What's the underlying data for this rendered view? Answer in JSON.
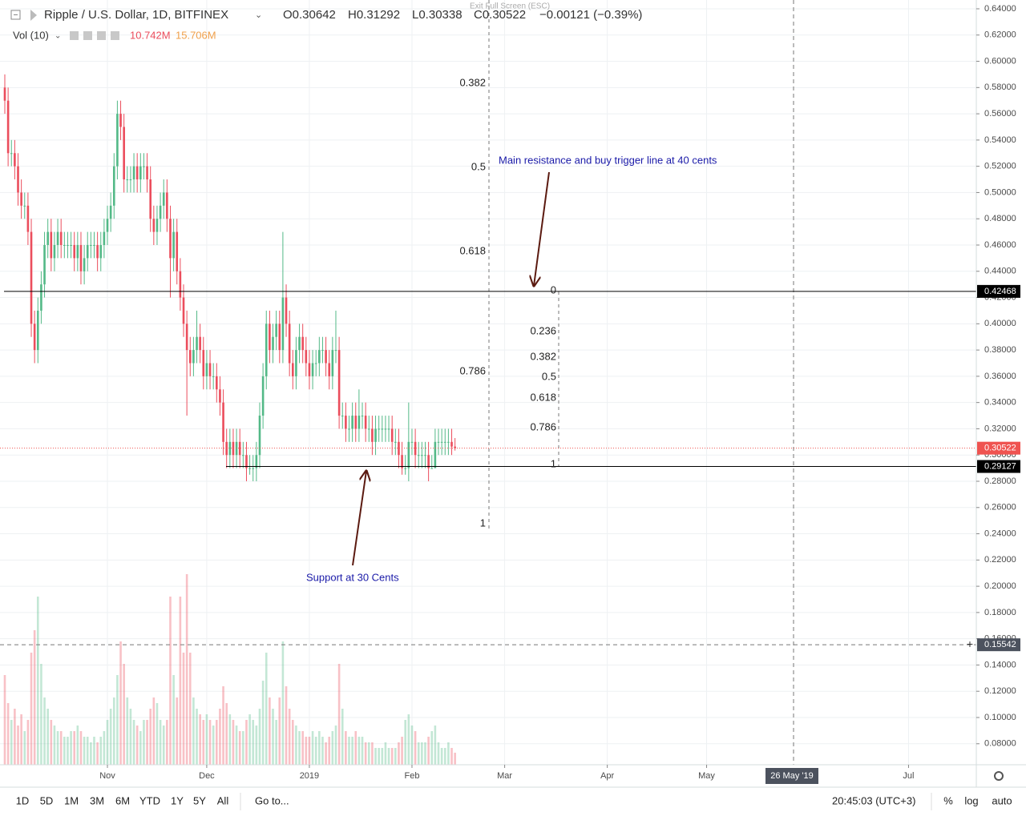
{
  "chart_data": {
    "type": "candlestick",
    "title": "Ripple / U.S. Dollar, 1D, BITFINEX",
    "header_values": [
      "O0.30642",
      "H0.31292",
      "L0.30338",
      "C0.30522",
      "−0.00121 (−0.39%)"
    ],
    "volume_label": "Vol (10)",
    "volume_values": [
      "10.742M",
      "15.706M"
    ],
    "open": [
      0.58,
      0.57,
      0.53,
      0.53,
      0.52,
      0.5,
      0.49,
      0.49,
      0.47,
      0.4,
      0.38,
      0.41,
      0.43,
      0.46,
      0.47,
      0.45,
      0.46,
      0.47,
      0.46,
      0.46,
      0.46,
      0.46,
      0.45,
      0.46,
      0.44,
      0.45,
      0.46,
      0.46,
      0.46,
      0.45,
      0.46,
      0.47,
      0.48,
      0.49,
      0.52,
      0.56,
      0.55,
      0.51,
      0.51,
      0.51,
      0.52,
      0.51,
      0.52,
      0.52,
      0.51,
      0.48,
      0.47,
      0.48,
      0.49,
      0.5,
      0.48,
      0.45,
      0.47,
      0.44,
      0.42,
      0.4,
      0.38,
      0.37,
      0.38,
      0.39,
      0.38,
      0.36,
      0.37,
      0.36,
      0.36,
      0.35,
      0.34,
      0.31,
      0.3,
      0.31,
      0.3,
      0.31,
      0.3,
      0.3,
      0.29,
      0.29,
      0.29,
      0.3,
      0.33,
      0.36,
      0.4,
      0.38,
      0.39,
      0.4,
      0.38,
      0.42,
      0.4,
      0.37,
      0.36,
      0.38,
      0.39,
      0.38,
      0.37,
      0.36,
      0.37,
      0.37,
      0.38,
      0.38,
      0.37,
      0.36,
      0.38,
      0.38,
      0.33,
      0.33,
      0.32,
      0.32,
      0.33,
      0.32,
      0.33,
      0.33,
      0.32,
      0.32,
      0.31,
      0.32,
      0.32,
      0.32,
      0.32,
      0.32,
      0.31,
      0.31,
      0.3,
      0.29,
      0.29,
      0.31,
      0.31,
      0.3,
      0.3,
      0.3,
      0.3,
      0.29,
      0.29,
      0.31,
      0.31,
      0.31,
      0.31,
      0.31,
      0.30642
    ],
    "high": [
      0.59,
      0.58,
      0.54,
      0.54,
      0.53,
      0.51,
      0.5,
      0.5,
      0.48,
      0.41,
      0.42,
      0.44,
      0.47,
      0.48,
      0.48,
      0.47,
      0.48,
      0.48,
      0.47,
      0.47,
      0.47,
      0.47,
      0.47,
      0.47,
      0.46,
      0.47,
      0.47,
      0.47,
      0.47,
      0.47,
      0.48,
      0.49,
      0.5,
      0.53,
      0.57,
      0.57,
      0.56,
      0.52,
      0.52,
      0.53,
      0.53,
      0.53,
      0.53,
      0.53,
      0.52,
      0.49,
      0.49,
      0.5,
      0.51,
      0.51,
      0.49,
      0.48,
      0.48,
      0.45,
      0.43,
      0.41,
      0.39,
      0.39,
      0.41,
      0.4,
      0.39,
      0.38,
      0.38,
      0.37,
      0.37,
      0.36,
      0.35,
      0.32,
      0.32,
      0.32,
      0.32,
      0.32,
      0.31,
      0.31,
      0.3,
      0.3,
      0.31,
      0.34,
      0.37,
      0.41,
      0.41,
      0.4,
      0.41,
      0.41,
      0.47,
      0.43,
      0.41,
      0.38,
      0.39,
      0.4,
      0.4,
      0.39,
      0.38,
      0.38,
      0.38,
      0.39,
      0.39,
      0.39,
      0.38,
      0.39,
      0.41,
      0.39,
      0.34,
      0.34,
      0.33,
      0.34,
      0.34,
      0.35,
      0.34,
      0.34,
      0.33,
      0.33,
      0.33,
      0.33,
      0.33,
      0.33,
      0.33,
      0.33,
      0.32,
      0.32,
      0.31,
      0.3,
      0.34,
      0.32,
      0.32,
      0.31,
      0.31,
      0.31,
      0.31,
      0.3,
      0.32,
      0.32,
      0.32,
      0.32,
      0.32,
      0.32,
      0.31292
    ],
    "low": [
      0.56,
      0.52,
      0.52,
      0.51,
      0.49,
      0.48,
      0.48,
      0.46,
      0.39,
      0.37,
      0.37,
      0.4,
      0.42,
      0.45,
      0.44,
      0.44,
      0.45,
      0.45,
      0.45,
      0.45,
      0.45,
      0.44,
      0.44,
      0.43,
      0.43,
      0.44,
      0.45,
      0.45,
      0.44,
      0.44,
      0.45,
      0.46,
      0.47,
      0.48,
      0.51,
      0.54,
      0.5,
      0.5,
      0.5,
      0.5,
      0.5,
      0.5,
      0.51,
      0.5,
      0.47,
      0.46,
      0.46,
      0.47,
      0.48,
      0.47,
      0.42,
      0.44,
      0.43,
      0.41,
      0.39,
      0.33,
      0.36,
      0.36,
      0.37,
      0.37,
      0.35,
      0.35,
      0.35,
      0.35,
      0.34,
      0.33,
      0.3,
      0.29,
      0.29,
      0.29,
      0.29,
      0.29,
      0.29,
      0.28,
      0.285,
      0.28,
      0.28,
      0.29,
      0.32,
      0.35,
      0.37,
      0.37,
      0.38,
      0.37,
      0.37,
      0.39,
      0.36,
      0.35,
      0.35,
      0.37,
      0.37,
      0.36,
      0.35,
      0.35,
      0.36,
      0.36,
      0.37,
      0.36,
      0.35,
      0.35,
      0.37,
      0.32,
      0.32,
      0.31,
      0.31,
      0.31,
      0.31,
      0.31,
      0.32,
      0.31,
      0.31,
      0.3,
      0.3,
      0.31,
      0.31,
      0.31,
      0.31,
      0.3,
      0.3,
      0.29,
      0.285,
      0.285,
      0.28,
      0.3,
      0.29,
      0.29,
      0.29,
      0.29,
      0.28,
      0.29,
      0.29,
      0.3,
      0.3,
      0.3,
      0.3,
      0.3,
      0.30338
    ],
    "close": [
      0.57,
      0.53,
      0.53,
      0.52,
      0.5,
      0.49,
      0.49,
      0.47,
      0.4,
      0.38,
      0.41,
      0.43,
      0.46,
      0.47,
      0.45,
      0.46,
      0.47,
      0.46,
      0.46,
      0.46,
      0.46,
      0.45,
      0.46,
      0.44,
      0.45,
      0.46,
      0.46,
      0.46,
      0.45,
      0.46,
      0.47,
      0.48,
      0.49,
      0.52,
      0.56,
      0.55,
      0.51,
      0.51,
      0.51,
      0.52,
      0.51,
      0.52,
      0.52,
      0.51,
      0.48,
      0.47,
      0.48,
      0.49,
      0.5,
      0.48,
      0.45,
      0.47,
      0.44,
      0.42,
      0.4,
      0.38,
      0.37,
      0.38,
      0.39,
      0.38,
      0.36,
      0.37,
      0.36,
      0.36,
      0.35,
      0.34,
      0.31,
      0.3,
      0.31,
      0.3,
      0.31,
      0.3,
      0.3,
      0.29,
      0.29,
      0.29,
      0.3,
      0.33,
      0.36,
      0.4,
      0.38,
      0.39,
      0.4,
      0.38,
      0.42,
      0.4,
      0.37,
      0.36,
      0.38,
      0.39,
      0.38,
      0.37,
      0.36,
      0.37,
      0.37,
      0.38,
      0.38,
      0.37,
      0.36,
      0.38,
      0.38,
      0.33,
      0.33,
      0.32,
      0.32,
      0.33,
      0.32,
      0.33,
      0.33,
      0.32,
      0.32,
      0.31,
      0.32,
      0.32,
      0.32,
      0.32,
      0.32,
      0.31,
      0.31,
      0.3,
      0.29,
      0.29,
      0.31,
      0.31,
      0.3,
      0.3,
      0.3,
      0.3,
      0.29,
      0.29,
      0.31,
      0.31,
      0.31,
      0.31,
      0.31,
      0.30642,
      0.30522
    ],
    "volume": [
      80,
      55,
      40,
      50,
      35,
      45,
      30,
      40,
      100,
      120,
      150,
      90,
      60,
      50,
      40,
      35,
      30,
      30,
      25,
      25,
      30,
      30,
      35,
      30,
      25,
      25,
      20,
      25,
      20,
      25,
      30,
      40,
      50,
      60,
      80,
      110,
      90,
      60,
      50,
      40,
      35,
      30,
      40,
      40,
      50,
      60,
      55,
      40,
      35,
      40,
      150,
      80,
      60,
      150,
      100,
      170,
      100,
      60,
      50,
      45,
      40,
      45,
      40,
      35,
      40,
      50,
      70,
      55,
      45,
      40,
      35,
      30,
      30,
      40,
      45,
      40,
      35,
      50,
      75,
      100,
      60,
      50,
      40,
      60,
      110,
      70,
      50,
      40,
      35,
      30,
      30,
      25,
      25,
      30,
      25,
      30,
      25,
      20,
      25,
      30,
      35,
      90,
      50,
      30,
      25,
      25,
      30,
      25,
      25,
      20,
      20,
      20,
      15,
      15,
      15,
      20,
      15,
      15,
      15,
      20,
      25,
      40,
      45,
      35,
      30,
      20,
      20,
      20,
      25,
      30,
      35,
      20,
      15,
      15,
      20,
      15,
      10.742
    ],
    "up_color": "#53b987",
    "down_color": "#eb4d5c",
    "xlim": [
      -1.45,
      293.47
    ],
    "xticks": [
      {
        "value": 31,
        "label": "Nov"
      },
      {
        "value": 61,
        "label": "Dec"
      },
      {
        "value": 92,
        "label": "2019"
      },
      {
        "value": 123,
        "label": "Feb"
      },
      {
        "value": 151,
        "label": "Mar"
      },
      {
        "value": 182,
        "label": "Apr"
      },
      {
        "value": 212,
        "label": "May"
      },
      {
        "value": 273,
        "label": "Jul"
      }
    ],
    "ylim": [
      0.064,
      0.6467
    ],
    "yticks": [
      {
        "value": 0.08,
        "label": "0.08000"
      },
      {
        "value": 0.1,
        "label": "0.10000"
      },
      {
        "value": 0.12,
        "label": "0.12000"
      },
      {
        "value": 0.14,
        "label": "0.14000"
      },
      {
        "value": 0.16,
        "label": "0.16000"
      },
      {
        "value": 0.18,
        "label": "0.18000"
      },
      {
        "value": 0.2,
        "label": "0.20000"
      },
      {
        "value": 0.22,
        "label": "0.22000"
      },
      {
        "value": 0.24,
        "label": "0.24000"
      },
      {
        "value": 0.26,
        "label": "0.26000"
      },
      {
        "value": 0.28,
        "label": "0.28000"
      },
      {
        "value": 0.3,
        "label": "0.30000"
      },
      {
        "value": 0.32,
        "label": "0.32000"
      },
      {
        "value": 0.34,
        "label": "0.34000"
      },
      {
        "value": 0.36,
        "label": "0.36000"
      },
      {
        "value": 0.38,
        "label": "0.38000"
      },
      {
        "value": 0.4,
        "label": "0.40000"
      },
      {
        "value": 0.42,
        "label": "0.42000"
      },
      {
        "value": 0.44,
        "label": "0.44000"
      },
      {
        "value": 0.46,
        "label": "0.46000"
      },
      {
        "value": 0.48,
        "label": "0.48000"
      },
      {
        "value": 0.5,
        "label": "0.50000"
      },
      {
        "value": 0.52,
        "label": "0.52000"
      },
      {
        "value": 0.54,
        "label": "0.54000"
      },
      {
        "value": 0.56,
        "label": "0.56000"
      },
      {
        "value": 0.58,
        "label": "0.58000"
      },
      {
        "value": 0.6,
        "label": "0.60000"
      },
      {
        "value": 0.62,
        "label": "0.62000"
      },
      {
        "value": 0.64,
        "label": "0.64000"
      }
    ],
    "grid": true,
    "price_lines": [
      {
        "value": 0.42468,
        "color": "#000000"
      },
      {
        "value": 0.29127,
        "color": "#000000"
      },
      {
        "value": 0.30522,
        "color": "#ef5350"
      }
    ],
    "crosshair": {
      "price": 0.15542,
      "date_label": "26 May '19"
    },
    "fib_left": [
      {
        "level": 0.382,
        "price": 0.5833
      },
      {
        "level": 0.5,
        "price": 0.5192
      },
      {
        "level": 0.618,
        "price": 0.4551
      },
      {
        "level": 0.786,
        "price": 0.3636
      },
      {
        "level": 1,
        "price": 0.2477
      }
    ],
    "fib_right": [
      {
        "level": 0,
        "price": 0.4252
      },
      {
        "level": 0.236,
        "price": 0.3941
      },
      {
        "level": 0.382,
        "price": 0.3746
      },
      {
        "level": 0.5,
        "price": 0.3593
      },
      {
        "level": 0.618,
        "price": 0.3435
      },
      {
        "level": 0.786,
        "price": 0.3209
      },
      {
        "level": 1,
        "price": 0.2928
      }
    ],
    "annotations": [
      "Main resistance and buy trigger line at 40 cents",
      "Support at 30 Cents"
    ]
  },
  "exit_fullscreen": "Exit Full Screen (ESC)",
  "toolbar": {
    "ranges": [
      "1D",
      "5D",
      "1M",
      "3M",
      "6M",
      "YTD",
      "1Y",
      "5Y",
      "All"
    ],
    "goto": "Go to...",
    "time": "20:45:03 (UTC+3)",
    "options": [
      "%",
      "log",
      "auto"
    ]
  }
}
